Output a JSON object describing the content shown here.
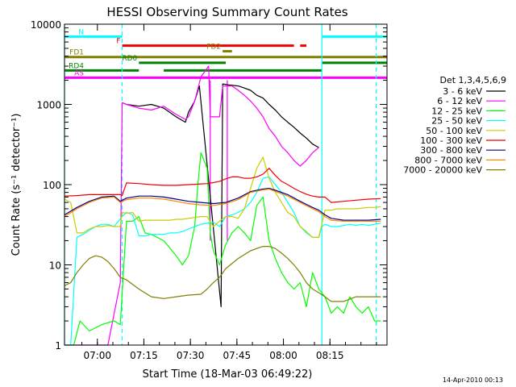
{
  "chart_data": {
    "type": "line",
    "title": "HESSI Observing Summary Count Rates",
    "xlabel": "Start Time (18-Mar-03 06:49:22)",
    "ylabel": "Count Rate (s⁻¹ detector⁻¹)",
    "timestamp": "14-Apr-2010 00:13",
    "x_unit": "minutes after 06:49:22",
    "xlim": [
      0,
      104
    ],
    "ylim": [
      1,
      10000
    ],
    "yscale": "log",
    "x_ticks": [
      {
        "label": "07:00",
        "x": 10.6
      },
      {
        "label": "07:15",
        "x": 25.6
      },
      {
        "label": "07:30",
        "x": 40.6
      },
      {
        "label": "07:45",
        "x": 55.6
      },
      {
        "label": "08:00",
        "x": 70.6
      },
      {
        "label": "08:15",
        "x": 85.6
      }
    ],
    "y_ticks": [
      {
        "label": "1",
        "y": 1
      },
      {
        "label": "10",
        "y": 10
      },
      {
        "label": "100",
        "y": 100
      },
      {
        "label": "1000",
        "y": 1000
      },
      {
        "label": "10000",
        "y": 10000
      }
    ],
    "legend_title": "Det 1,3,4,5,6,9",
    "legend_position": "right",
    "series": [
      {
        "name": "3 - 6 keV",
        "color": "#000000",
        "x": [
          18.6,
          20,
          24,
          28,
          32,
          36,
          39,
          40,
          42,
          43.5,
          50.5,
          51,
          53,
          56,
          58,
          60,
          62,
          64,
          66,
          68,
          70,
          72,
          74,
          76,
          78,
          80,
          82
        ],
        "y": [
          1050,
          1000,
          950,
          1000,
          900,
          700,
          600,
          800,
          1100,
          1700,
          3,
          1800,
          1750,
          1700,
          1600,
          1500,
          1300,
          1200,
          1000,
          850,
          700,
          600,
          520,
          440,
          380,
          320,
          290
        ]
      },
      {
        "name": "6 - 12 keV",
        "color": "#ff00ff",
        "x": [
          0,
          14,
          18,
          18.6,
          20,
          24,
          28,
          32,
          36,
          39,
          40,
          42,
          44,
          46.5,
          47,
          50,
          51,
          54,
          56,
          58,
          60,
          62,
          64,
          66,
          68,
          70,
          72,
          74,
          76,
          78,
          80,
          82
        ],
        "y": [
          1,
          1,
          6,
          1050,
          1000,
          900,
          850,
          950,
          750,
          650,
          700,
          1100,
          2200,
          3000,
          700,
          700,
          1700,
          1700,
          1500,
          1300,
          1100,
          900,
          700,
          500,
          400,
          300,
          250,
          200,
          170,
          200,
          250,
          290
        ]
      },
      {
        "name": "12 - 25 keV",
        "color": "#00ff00",
        "x": [
          0,
          3,
          5,
          8,
          12,
          16,
          18,
          20,
          22,
          24,
          26,
          28,
          32,
          36,
          38,
          40,
          42,
          43,
          44,
          46,
          47,
          48,
          50,
          52,
          54,
          56,
          58,
          60,
          62,
          64,
          66,
          68,
          70,
          72,
          74,
          76,
          78,
          80,
          82,
          84,
          86,
          88,
          90,
          92,
          94,
          96,
          98,
          100,
          102
        ],
        "y": [
          1,
          1,
          2,
          1.5,
          1.8,
          2,
          1.8,
          35,
          35,
          40,
          25,
          24,
          20,
          13,
          10,
          13,
          30,
          100,
          250,
          160,
          25,
          15,
          10,
          18,
          25,
          30,
          25,
          20,
          55,
          70,
          20,
          12,
          8,
          6,
          5,
          6,
          3,
          8,
          5,
          4,
          2.5,
          3,
          2.5,
          4,
          3,
          2.5,
          3,
          2,
          2
        ]
      },
      {
        "name": "25 - 50 keV",
        "color": "#00ffff",
        "x": [
          0,
          2,
          4,
          6,
          8,
          10,
          12,
          14,
          16,
          18.6,
          20,
          22,
          24,
          26,
          28,
          30,
          32,
          34,
          36,
          38,
          40,
          42,
          44,
          46,
          48,
          50,
          52,
          54,
          56,
          58,
          60,
          62,
          64,
          66,
          68,
          70,
          72,
          74,
          76,
          78,
          80,
          82,
          83,
          84,
          86,
          88,
          90,
          92,
          94,
          96,
          98,
          100,
          102
        ],
        "y": [
          1,
          1,
          22,
          24,
          27,
          30,
          32,
          32,
          30,
          40,
          45,
          42,
          23,
          23,
          24,
          24,
          24,
          25,
          25,
          26,
          28,
          30,
          32,
          33,
          34,
          30,
          40,
          42,
          45,
          50,
          60,
          80,
          120,
          125,
          100,
          80,
          60,
          45,
          30,
          25,
          22,
          22,
          30,
          32,
          30,
          30,
          31,
          32,
          31,
          32,
          31,
          32,
          33
        ]
      },
      {
        "name": "50 - 100 keV",
        "color": "#cccc00",
        "x": [
          0,
          2,
          4,
          6,
          8,
          10,
          12,
          14,
          16,
          18,
          18.6,
          20,
          22,
          24,
          26,
          28,
          30,
          32,
          34,
          36,
          38,
          40,
          42,
          44,
          46,
          48,
          50,
          52,
          54,
          56,
          58,
          60,
          62,
          64,
          66,
          68,
          70,
          72,
          74,
          76,
          78,
          80,
          82,
          84,
          86,
          88,
          90,
          92,
          94,
          96,
          98,
          100,
          102
        ],
        "y": [
          66,
          60,
          25,
          25,
          28,
          30,
          30,
          31,
          30,
          30,
          45,
          44,
          45,
          35,
          36,
          36,
          36,
          36,
          36,
          37,
          37,
          38,
          39,
          40,
          40,
          30,
          35,
          40,
          40,
          38,
          50,
          90,
          160,
          220,
          120,
          80,
          60,
          45,
          40,
          30,
          26,
          22,
          22,
          48,
          48,
          50,
          50,
          50,
          50,
          51,
          52,
          52,
          53
        ]
      },
      {
        "name": "100 - 300 keV",
        "color": "#ee0000",
        "x": [
          0,
          4,
          8,
          12,
          16,
          18,
          18.6,
          20,
          24,
          28,
          32,
          36,
          40,
          42,
          44,
          46,
          48,
          50,
          52,
          54,
          56,
          58,
          60,
          62,
          64,
          66,
          68,
          70,
          72,
          74,
          76,
          78,
          80,
          82,
          84,
          86,
          90,
          94,
          98,
          102
        ],
        "y": [
          72,
          73,
          75,
          75,
          75,
          75,
          73,
          105,
          103,
          100,
          98,
          98,
          100,
          101,
          102,
          103,
          106,
          110,
          118,
          125,
          125,
          120,
          120,
          125,
          135,
          160,
          130,
          110,
          100,
          90,
          82,
          76,
          72,
          70,
          70,
          60,
          62,
          64,
          66,
          67
        ]
      },
      {
        "name": "300 - 800 keV",
        "color": "#000088",
        "x": [
          0,
          4,
          8,
          12,
          16,
          18,
          20,
          24,
          28,
          32,
          36,
          40,
          44,
          48,
          52,
          56,
          60,
          64,
          66,
          68,
          72,
          76,
          80,
          82,
          84,
          86,
          90,
          94,
          98,
          102
        ],
        "y": [
          42,
          52,
          62,
          70,
          72,
          62,
          68,
          72,
          72,
          70,
          66,
          62,
          60,
          58,
          60,
          68,
          82,
          88,
          90,
          85,
          75,
          62,
          52,
          48,
          42,
          38,
          36,
          36,
          36,
          37
        ]
      },
      {
        "name": "800 - 7000 keV",
        "color": "#ff8800",
        "x": [
          0,
          4,
          8,
          12,
          16,
          18,
          20,
          24,
          28,
          32,
          36,
          40,
          44,
          48,
          52,
          56,
          60,
          64,
          66,
          68,
          72,
          76,
          80,
          82,
          84,
          86,
          90,
          94,
          98,
          102
        ],
        "y": [
          40,
          50,
          60,
          68,
          70,
          60,
          65,
          68,
          68,
          66,
          62,
          58,
          56,
          55,
          58,
          65,
          80,
          86,
          88,
          82,
          72,
          60,
          50,
          46,
          40,
          36,
          35,
          35,
          35,
          35
        ]
      },
      {
        "name": "7000 - 20000 keV",
        "color": "#808000",
        "x": [
          0,
          2,
          4,
          6,
          8,
          10,
          12,
          14,
          16,
          18,
          20,
          24,
          28,
          32,
          36,
          40,
          44,
          46,
          48,
          50,
          52,
          56,
          60,
          62,
          64,
          66,
          68,
          70,
          72,
          74,
          76,
          78,
          80,
          82,
          84,
          86,
          90,
          94,
          98,
          102
        ],
        "y": [
          5.5,
          6,
          8,
          10,
          12,
          13,
          12.5,
          11,
          9,
          7,
          6.5,
          5,
          4,
          3.8,
          4,
          4.2,
          4.3,
          5,
          6,
          7,
          9,
          12,
          15,
          16,
          17,
          17,
          16,
          14,
          12,
          10,
          8,
          6,
          5,
          4.5,
          4,
          3.5,
          3.5,
          4,
          4,
          4
        ]
      }
    ],
    "flags": [
      {
        "label": "N",
        "color": "#00ffff",
        "segments": [
          [
            0,
            18.6
          ],
          [
            83,
            104
          ]
        ],
        "y_level": 7000
      },
      {
        "label": "F",
        "color": "#ee0000",
        "segments": [
          [
            18.6,
            74
          ],
          [
            76,
            78
          ]
        ],
        "y_level": 5400
      },
      {
        "label": "FD1",
        "color": "#808000",
        "segments": [
          [
            0,
            104
          ]
        ],
        "y_level": 3900
      },
      {
        "label": "FD2",
        "color": "#808000",
        "segments": [
          [
            51,
            54
          ]
        ],
        "y_level": 4600
      },
      {
        "label": "RD0",
        "color": "#008000",
        "segments": [
          [
            24,
            52
          ],
          [
            83,
            104
          ]
        ],
        "y_level": 3300
      },
      {
        "label": "RD4",
        "color": "#008000",
        "segments": [
          [
            0,
            24
          ],
          [
            32,
            83
          ]
        ],
        "y_level": 2650
      },
      {
        "label": "AS",
        "color": "#ff00ff",
        "segments": [
          [
            0,
            104
          ]
        ],
        "y_level": 2150
      }
    ],
    "saa_markers": {
      "color": "#00ffff",
      "solid": [
        0,
        83
      ],
      "dashed": [
        18.6,
        100.5
      ]
    },
    "attenuator_markers": {
      "color": "#ff00ff",
      "solid": [
        47,
        52.5
      ]
    }
  }
}
